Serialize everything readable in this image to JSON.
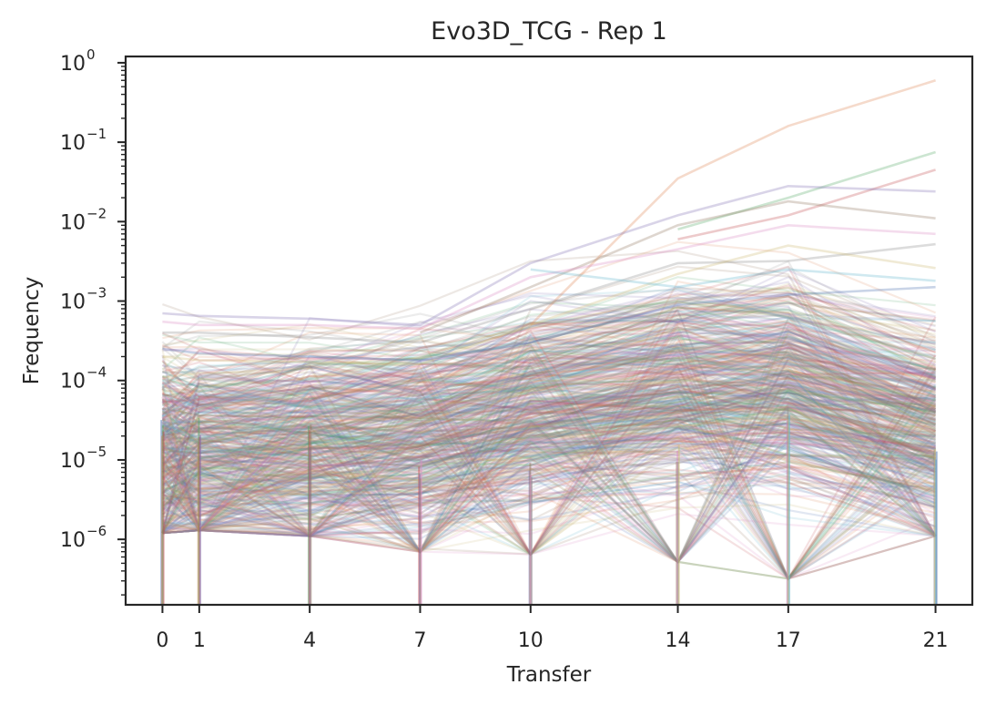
{
  "chart_data": {
    "type": "line",
    "title": "Evo3D_TCG - Rep 1",
    "xlabel": "Transfer",
    "ylabel": "Frequency",
    "x": [
      0,
      1,
      4,
      7,
      10,
      14,
      17,
      21
    ],
    "x_ticks": [
      "0",
      "1",
      "4",
      "7",
      "10",
      "14",
      "17",
      "21"
    ],
    "xlim": [
      -1,
      22
    ],
    "yscale": "log",
    "ylim": [
      1.5e-07,
      1.2
    ],
    "y_ticks": [
      {
        "value": 1e-06,
        "base": "10",
        "exp": "−6"
      },
      {
        "value": 1e-05,
        "base": "10",
        "exp": "−5"
      },
      {
        "value": 0.0001,
        "base": "10",
        "exp": "−4"
      },
      {
        "value": 0.001,
        "base": "10",
        "exp": "−3"
      },
      {
        "value": 0.01,
        "base": "10",
        "exp": "−2"
      },
      {
        "value": 0.1,
        "base": "10",
        "exp": "−1"
      },
      {
        "value": 1,
        "base": "10",
        "exp": "0"
      }
    ],
    "grid": false,
    "legend": false,
    "palette": [
      "#4c72b0",
      "#dd8452",
      "#55a868",
      "#c44e52",
      "#8172b3",
      "#937860",
      "#da8bc3",
      "#8c8c8c",
      "#ccb974",
      "#64b5cd"
    ],
    "series": [
      {
        "values": [
          null,
          null,
          null,
          null,
          0.0005,
          0.035,
          0.16,
          0.6
        ]
      },
      {
        "values": [
          null,
          null,
          null,
          null,
          null,
          0.008,
          0.02,
          0.075
        ]
      },
      {
        "values": [
          null,
          null,
          null,
          null,
          null,
          0.006,
          0.012,
          0.045
        ]
      },
      {
        "values": [
          0.0007,
          0.00065,
          0.0006,
          0.0005,
          0.003,
          0.012,
          0.028,
          0.024
        ]
      },
      {
        "values": [
          null,
          null,
          null,
          0.0004,
          0.0015,
          0.009,
          0.018,
          0.011
        ]
      },
      {
        "values": [
          0.00055,
          0.0005,
          0.0005,
          0.00045,
          0.002,
          0.0045,
          0.009,
          0.007
        ]
      },
      {
        "values": [
          0.0004,
          0.0004,
          0.00035,
          0.0003,
          0.0008,
          0.003,
          0.0032,
          0.0052
        ]
      },
      {
        "values": [
          0.0002,
          0.00018,
          0.00017,
          0.00016,
          0.0005,
          0.0022,
          0.005,
          0.0026
        ]
      },
      {
        "values": [
          null,
          null,
          null,
          null,
          0.0025,
          0.0015,
          0.0025,
          0.0018
        ]
      },
      {
        "values": [
          0.00025,
          0.00022,
          0.0002,
          0.00018,
          0.0003,
          0.0009,
          0.0012,
          0.0015
        ]
      }
    ]
  }
}
